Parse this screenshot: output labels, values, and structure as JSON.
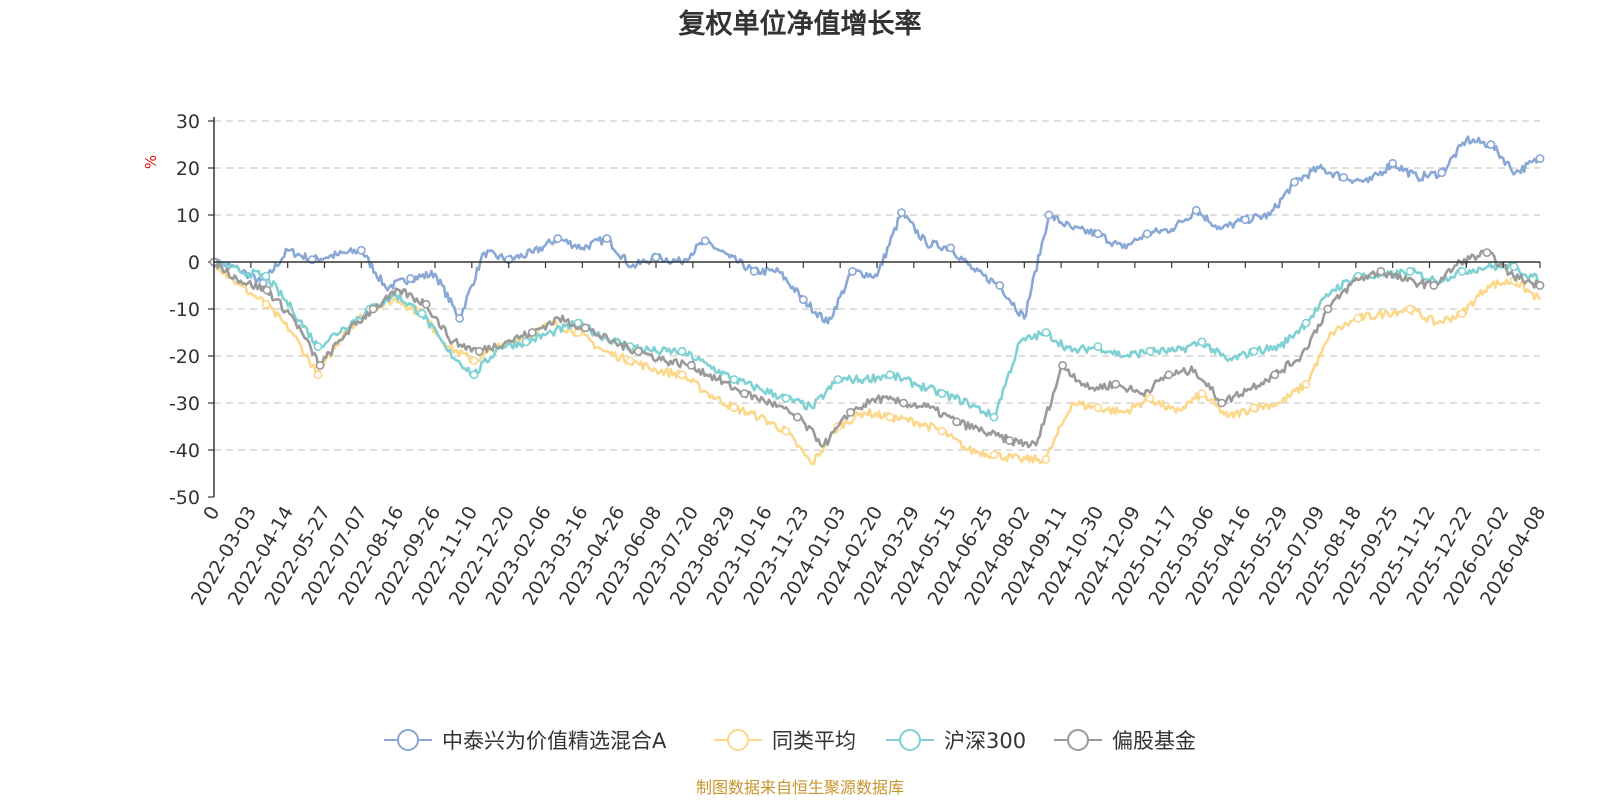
{
  "chart_data": {
    "type": "line",
    "title": "复权单位净值增长率",
    "ylabel": "%",
    "ylim": [
      -50,
      30
    ],
    "yticks": [
      30,
      20,
      10,
      0,
      -10,
      -20,
      -30,
      -40,
      -50
    ],
    "grid": true,
    "legend_position": "bottom",
    "source": "制图数据来自恒生聚源数据库",
    "x_tick_labels": [
      "0",
      "2022-03-03",
      "2022-04-14",
      "2022-05-27",
      "2022-07-07",
      "2022-08-16",
      "2022-09-26",
      "2022-11-10",
      "2022-12-20",
      "2023-02-06",
      "2023-03-16",
      "2023-04-26",
      "2023-06-08",
      "2023-07-20",
      "2023-08-29",
      "2023-10-16",
      "2023-11-23",
      "2024-01-03",
      "2024-02-20",
      "2024-03-29",
      "2024-05-15",
      "2024-06-25",
      "2024-08-02",
      "2024-09-11",
      "2024-10-30",
      "2024-12-09",
      "2025-01-17",
      "2025-03-06",
      "2025-04-16",
      "2025-05-29",
      "2025-07-09",
      "2025-08-18",
      "2025-09-25",
      "2025-11-12",
      "2025-12-22",
      "2026-02-02",
      "2026-04-08"
    ],
    "series": [
      {
        "name": "中泰兴为价值精选混合A",
        "color": "#8aa8d6",
        "values": [
          0,
          -1.5,
          -4.5,
          2.5,
          0.5,
          1.5,
          2.5,
          -5.5,
          -3.5,
          -2.5,
          -12,
          2,
          0.5,
          2,
          5,
          3,
          5,
          -1,
          1,
          0,
          4.5,
          1,
          -2,
          -2,
          -8,
          -13,
          -2,
          -3,
          10.5,
          4,
          3,
          -2,
          -5,
          -12,
          10,
          7,
          6,
          3,
          6,
          7,
          11,
          7,
          9,
          10,
          17,
          20,
          18,
          17,
          21,
          18,
          19,
          26,
          25,
          19,
          22
        ]
      },
      {
        "name": "同类平均",
        "color": "#fcd88c",
        "values": [
          0,
          -5,
          -9,
          -15,
          -24,
          -15,
          -10,
          -8,
          -11,
          -18,
          -21,
          -18,
          -16,
          -13,
          -15,
          -19,
          -21,
          -23,
          -24,
          -28,
          -31,
          -33,
          -36,
          -43,
          -35,
          -32,
          -33,
          -34,
          -36,
          -40,
          -41,
          -42,
          -42,
          -30,
          -31,
          -32,
          -29,
          -32,
          -28,
          -33,
          -31,
          -30,
          -26,
          -15,
          -12,
          -11,
          -10,
          -13,
          -11,
          -5,
          -4,
          -8
        ]
      },
      {
        "name": "沪深300",
        "color": "#7fd1d3",
        "values": [
          0,
          -2,
          -3,
          -10,
          -18,
          -14,
          -10,
          -7,
          -11,
          -19,
          -24,
          -18,
          -17,
          -15,
          -13,
          -16,
          -18,
          -19,
          -19,
          -22,
          -25,
          -27,
          -29,
          -31,
          -25,
          -25,
          -24,
          -26,
          -28,
          -30,
          -33,
          -17,
          -15,
          -19,
          -18,
          -20,
          -19,
          -19,
          -17,
          -21,
          -19,
          -18,
          -13,
          -6,
          -3,
          -3,
          -2,
          -4,
          -2,
          -1,
          -1,
          -4
        ]
      },
      {
        "name": "偏股基金",
        "color": "#9a9a9a",
        "values": [
          0,
          -4,
          -6,
          -12,
          -22,
          -15,
          -10,
          -6,
          -9,
          -17,
          -19,
          -17,
          -15,
          -12,
          -14,
          -17,
          -19,
          -21,
          -22,
          -25,
          -28,
          -30,
          -33,
          -39,
          -32,
          -29,
          -30,
          -31,
          -34,
          -36,
          -38,
          -39,
          -22,
          -27,
          -26,
          -28,
          -24,
          -23,
          -30,
          -27,
          -24,
          -20,
          -10,
          -4,
          -2,
          -4,
          -5,
          0,
          2,
          -3,
          -5
        ]
      }
    ]
  }
}
